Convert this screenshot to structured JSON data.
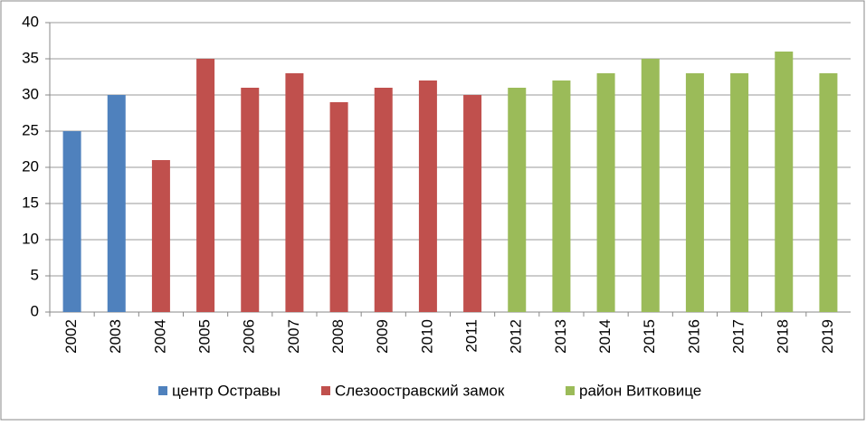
{
  "chart_data": {
    "type": "bar",
    "categories": [
      "2002",
      "2003",
      "2004",
      "2005",
      "2006",
      "2007",
      "2008",
      "2009",
      "2010",
      "2011",
      "2012",
      "2013",
      "2014",
      "2015",
      "2016",
      "2017",
      "2018",
      "2019"
    ],
    "series": [
      {
        "name": "центр Остравы",
        "color": "#4f81bd",
        "values": [
          25,
          30,
          null,
          null,
          null,
          null,
          null,
          null,
          null,
          null,
          null,
          null,
          null,
          null,
          null,
          null,
          null,
          null
        ]
      },
      {
        "name": "Слезоостравский замок",
        "color": "#c0504d",
        "values": [
          null,
          null,
          21,
          35,
          31,
          33,
          29,
          31,
          32,
          30,
          null,
          null,
          null,
          null,
          null,
          null,
          null,
          null
        ]
      },
      {
        "name": "район Витковице",
        "color": "#9bbb59",
        "values": [
          null,
          null,
          null,
          null,
          null,
          null,
          null,
          null,
          null,
          null,
          31,
          32,
          33,
          35,
          33,
          33,
          36,
          33
        ]
      }
    ],
    "ylim": [
      0,
      40
    ],
    "yticks": [
      0,
      5,
      10,
      15,
      20,
      25,
      30,
      35,
      40
    ],
    "grid": true,
    "legend": "bottom"
  }
}
